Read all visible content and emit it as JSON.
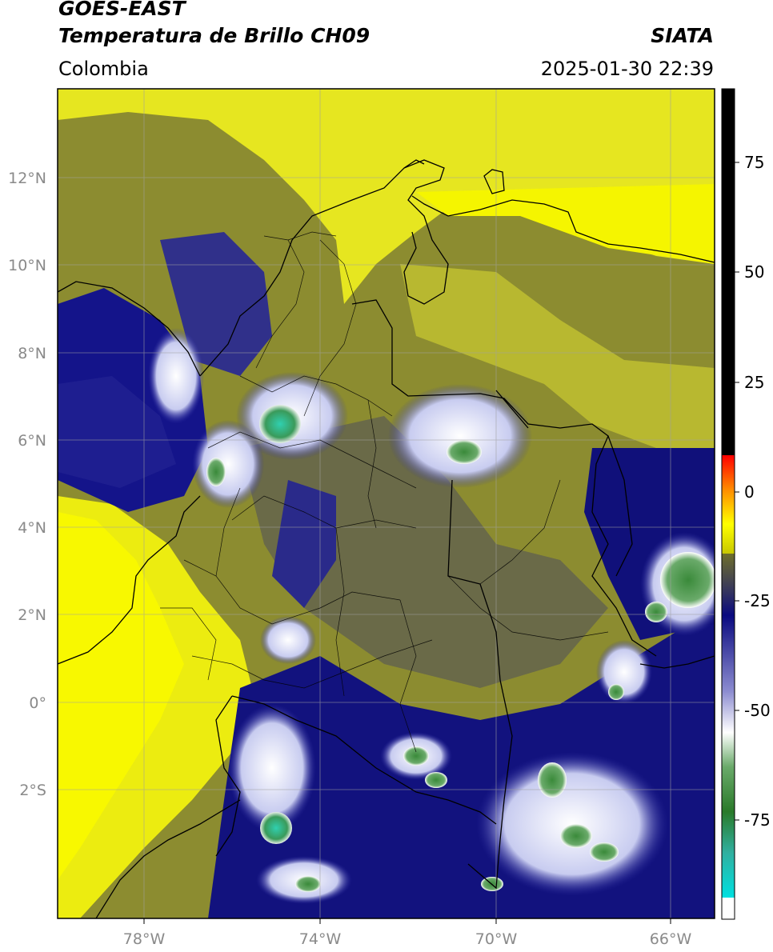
{
  "header": {
    "satellite": "GOES-EAST",
    "product": "Temperatura de Brillo CH09",
    "organization": "SIATA",
    "region": "Colombia",
    "datetime": "2025-01-30 22:39"
  },
  "map": {
    "lon_ticks": [
      {
        "label": "78°W"
      },
      {
        "label": "74°W"
      },
      {
        "label": "70°W"
      },
      {
        "label": "66°W"
      }
    ],
    "lat_ticks": [
      {
        "label": "12°N"
      },
      {
        "label": "10°N"
      },
      {
        "label": "8°N"
      },
      {
        "label": "6°N"
      },
      {
        "label": "4°N"
      },
      {
        "label": "2°N"
      },
      {
        "label": "0°"
      },
      {
        "label": "2°S"
      }
    ]
  },
  "colorbar": {
    "ticks": [
      {
        "label": "75"
      },
      {
        "label": "50"
      },
      {
        "label": "25"
      },
      {
        "label": "0"
      },
      {
        "label": "-25"
      },
      {
        "label": "-50"
      },
      {
        "label": "-75"
      }
    ]
  },
  "palette": {
    "warm_yellow": "#ffff00",
    "olive": "#9a9a2a",
    "navy": "#0c0c8a",
    "white_cloud": "#eef0ff",
    "green_core": "#4a9a4a",
    "teal_core": "#30c8a0"
  }
}
